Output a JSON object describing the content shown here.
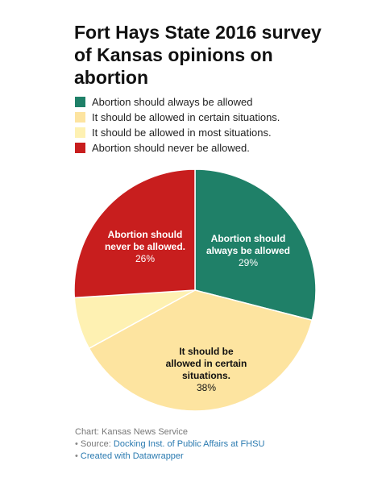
{
  "title": "Fort Hays State 2016 survey of Kansas opinions on abortion",
  "chart_data": {
    "type": "pie",
    "categories": [
      "Abortion should always be allowed",
      "It should be allowed in certain situations.",
      "It should be allowed in most situations.",
      "Abortion should never be allowed."
    ],
    "values": [
      29,
      38,
      7,
      26
    ],
    "colors": [
      "#1f8068",
      "#fde4a0",
      "#fef1b2",
      "#c81e1e"
    ],
    "slice_labels": [
      {
        "text": "Abortion should always be allowed",
        "value": "29%",
        "color": "#ffffff"
      },
      {
        "text": "It should be allowed in certain situations.",
        "value": "38%",
        "color": "#111111"
      },
      {
        "text": "",
        "value": "",
        "color": "#111111"
      },
      {
        "text": "Abortion should never be allowed.",
        "value": "26%",
        "color": "#ffffff"
      }
    ],
    "legend_position": "top"
  },
  "footer": {
    "credit": "Chart: Kansas News Service",
    "source_prefix": "Source:",
    "source_link": "Docking Inst. of Public Affairs at FHSU",
    "created_with": "Created with Datawrapper"
  }
}
